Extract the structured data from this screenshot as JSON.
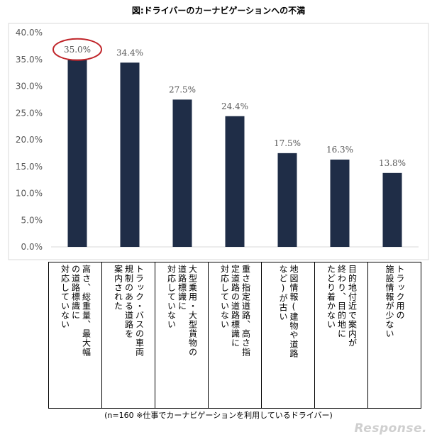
{
  "chart_data": {
    "type": "bar",
    "title": "図:ドライバーのカーナビゲーションへの不満",
    "categories": [
      "高さ、総重量、最大幅の道路標識に対応していない",
      "トラック・バスの車両規制のある道路を案内された",
      "大型乗用・大型貨物の道路標識に対応していない",
      "重さ指定道路、高さ指定道路の道路標識に対応していない",
      "地図情報(建物や道路など)が古い",
      "目的地付近で案内が終わり、目的地にたどり着かない",
      "トラック用の施設情報が少ない"
    ],
    "category_lines": [
      [
        "高さ、総重量、最大幅",
        "の道路標識に",
        "対応していない"
      ],
      [
        "トラック・バスの車両",
        "規制のある道路を",
        "案内された"
      ],
      [
        "大型乗用・大型貨物の",
        "道路標識に",
        "対応していない"
      ],
      [
        "重さ指定道路、高さ指",
        "定道路の道路標識に",
        "対応していない"
      ],
      [
        "地図情報(建物や道路",
        "など)が古い"
      ],
      [
        "目的地付近で案内が",
        "終わり、目的地に",
        "たどり着かない"
      ],
      [
        "トラック用の",
        "施設情報が少ない"
      ]
    ],
    "values": [
      35.0,
      34.4,
      27.5,
      24.4,
      17.5,
      16.3,
      13.8
    ],
    "data_labels": [
      "35.0%",
      "34.4%",
      "27.5%",
      "24.4%",
      "17.5%",
      "16.3%",
      "13.8%"
    ],
    "yticks": [
      "0.0%",
      "5.0%",
      "10.0%",
      "15.0%",
      "20.0%",
      "25.0%",
      "30.0%",
      "35.0%",
      "40.0%"
    ],
    "ylim": [
      0,
      40
    ],
    "highlight_index": 0,
    "grid": false,
    "colors": {
      "bar": "#1f2d47",
      "highlight": "#c0252a",
      "frame": "#d9d9d9",
      "label": "#595959"
    }
  },
  "note": "(n=160 ※仕事でカーナビゲーションを利用しているドライバー)",
  "watermark": "Response."
}
